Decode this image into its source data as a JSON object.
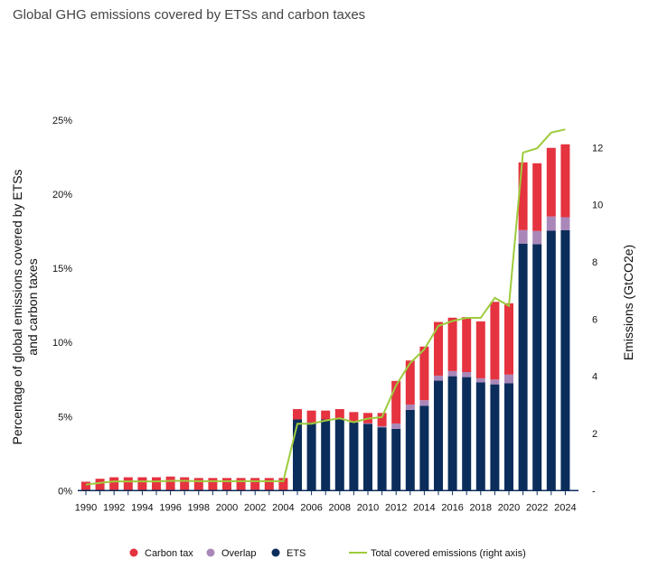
{
  "chart_data": {
    "type": "bar",
    "title": "Global GHG emissions covered by ETSs and carbon taxes",
    "ylabel": "Percentage of global emissions covered by ETSs and carbon taxes",
    "y2label": "Emissions (GtCO2e)",
    "ylim": [
      0,
      25
    ],
    "y2lim": [
      0,
      12.9
    ],
    "yticks": [
      "0%",
      "5%",
      "10%",
      "15%",
      "20%",
      "25%"
    ],
    "y2ticks": [
      "-",
      "2",
      "4",
      "6",
      "8",
      "10",
      "12"
    ],
    "xticks": [
      "1990",
      "1992",
      "1994",
      "1996",
      "1998",
      "2000",
      "2002",
      "2004",
      "2006",
      "2008",
      "2010",
      "2012",
      "2014",
      "2016",
      "2018",
      "2020",
      "2022",
      "2024"
    ],
    "legend_position": "bottom",
    "categories": [
      1990,
      1991,
      1992,
      1993,
      1994,
      1995,
      1996,
      1997,
      1998,
      1999,
      2000,
      2001,
      2002,
      2003,
      2004,
      2005,
      2006,
      2007,
      2008,
      2009,
      2010,
      2011,
      2012,
      2013,
      2014,
      2015,
      2016,
      2017,
      2018,
      2019,
      2020,
      2021,
      2022,
      2023,
      2024
    ],
    "series": [
      {
        "name": "ETS",
        "color": "#0b2d5b",
        "axis": "left",
        "values": [
          0,
          0,
          0,
          0,
          0,
          0,
          0,
          0,
          0,
          0,
          0,
          0,
          0,
          0,
          0,
          4.8,
          4.6,
          4.8,
          4.8,
          4.6,
          4.5,
          4.27,
          4.17,
          5.45,
          5.73,
          7.42,
          7.72,
          7.66,
          7.3,
          7.17,
          7.24,
          16.67,
          16.63,
          17.54,
          17.58
        ]
      },
      {
        "name": "Overlap",
        "color": "#a987b9",
        "axis": "left",
        "values": [
          0,
          0,
          0,
          0,
          0,
          0,
          0,
          0,
          0,
          0,
          0,
          0,
          0,
          0,
          0,
          0,
          0,
          0,
          0,
          0,
          0.05,
          0.08,
          0.36,
          0.36,
          0.37,
          0.34,
          0.35,
          0.34,
          0.28,
          0.33,
          0.59,
          0.91,
          0.89,
          0.96,
          0.87
        ]
      },
      {
        "name": "Carbon tax",
        "color": "#e5333f",
        "axis": "left",
        "values": [
          0.6,
          0.8,
          0.9,
          0.9,
          0.9,
          0.9,
          0.95,
          0.9,
          0.85,
          0.85,
          0.85,
          0.85,
          0.85,
          0.85,
          0.85,
          0.7,
          0.8,
          0.6,
          0.7,
          0.7,
          0.69,
          0.89,
          2.87,
          2.97,
          3.62,
          3.62,
          3.6,
          3.71,
          3.84,
          5.24,
          4.81,
          4.57,
          4.57,
          4.63,
          4.92
        ]
      },
      {
        "name": "Total covered emissions (right axis)",
        "color": "#9dcb3c",
        "axis": "right",
        "type": "line",
        "values": [
          0.21,
          0.27,
          0.32,
          0.32,
          0.32,
          0.32,
          0.34,
          0.34,
          0.33,
          0.33,
          0.33,
          0.33,
          0.33,
          0.33,
          0.33,
          2.34,
          2.34,
          2.45,
          2.53,
          2.39,
          2.52,
          2.57,
          3.68,
          4.46,
          4.94,
          5.76,
          5.93,
          6.04,
          6.04,
          6.74,
          6.46,
          11.82,
          11.97,
          12.52,
          12.63
        ]
      }
    ]
  }
}
